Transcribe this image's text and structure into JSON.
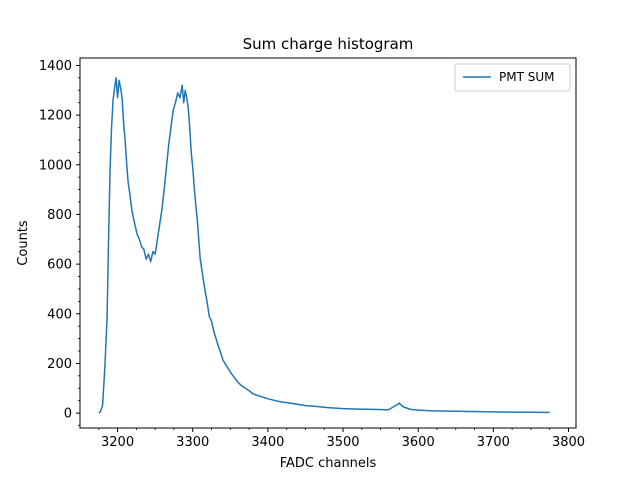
{
  "chart_data": {
    "type": "line",
    "title": "Sum charge histogram",
    "xlabel": "FADC channels",
    "ylabel": "Counts",
    "xlim": [
      3150,
      3810
    ],
    "ylim": [
      -60,
      1430
    ],
    "xticks": [
      3200,
      3300,
      3400,
      3500,
      3600,
      3700,
      3800
    ],
    "yticks": [
      0,
      200,
      400,
      600,
      800,
      1000,
      1200,
      1400
    ],
    "grid": false,
    "legend_position": "top-right",
    "colors": {
      "series": "#1f77b4"
    },
    "series": [
      {
        "name": "PMT SUM",
        "x": [
          3175,
          3177,
          3180,
          3183,
          3186,
          3188,
          3190,
          3192,
          3194,
          3196,
          3198,
          3200,
          3202,
          3204,
          3206,
          3208,
          3210,
          3212,
          3214,
          3216,
          3218,
          3220,
          3223,
          3226,
          3229,
          3232,
          3235,
          3238,
          3241,
          3244,
          3247,
          3250,
          3253,
          3256,
          3259,
          3262,
          3265,
          3268,
          3271,
          3274,
          3277,
          3280,
          3283,
          3286,
          3288,
          3290,
          3292,
          3294,
          3296,
          3298,
          3300,
          3302,
          3304,
          3306,
          3308,
          3310,
          3313,
          3316,
          3319,
          3322,
          3325,
          3328,
          3331,
          3334,
          3337,
          3340,
          3345,
          3350,
          3355,
          3360,
          3365,
          3370,
          3375,
          3380,
          3390,
          3400,
          3410,
          3420,
          3430,
          3440,
          3450,
          3460,
          3470,
          3480,
          3490,
          3500,
          3520,
          3540,
          3560,
          3570,
          3575,
          3580,
          3590,
          3600,
          3620,
          3640,
          3660,
          3680,
          3700,
          3720,
          3740,
          3760,
          3775
        ],
        "y": [
          0,
          5,
          30,
          180,
          380,
          700,
          980,
          1150,
          1260,
          1310,
          1350,
          1270,
          1340,
          1310,
          1270,
          1170,
          1100,
          1010,
          930,
          890,
          840,
          800,
          760,
          720,
          700,
          670,
          660,
          620,
          640,
          610,
          650,
          640,
          700,
          760,
          820,
          900,
          990,
          1080,
          1150,
          1220,
          1250,
          1290,
          1270,
          1320,
          1250,
          1300,
          1270,
          1230,
          1150,
          1050,
          990,
          910,
          840,
          780,
          700,
          620,
          560,
          500,
          450,
          390,
          370,
          330,
          300,
          270,
          245,
          215,
          190,
          165,
          145,
          125,
          110,
          100,
          90,
          78,
          67,
          58,
          50,
          44,
          40,
          35,
          30,
          28,
          25,
          22,
          20,
          18,
          16,
          15,
          13,
          30,
          40,
          25,
          15,
          12,
          9,
          8,
          7,
          6,
          5,
          4,
          4,
          3,
          3
        ]
      }
    ]
  }
}
